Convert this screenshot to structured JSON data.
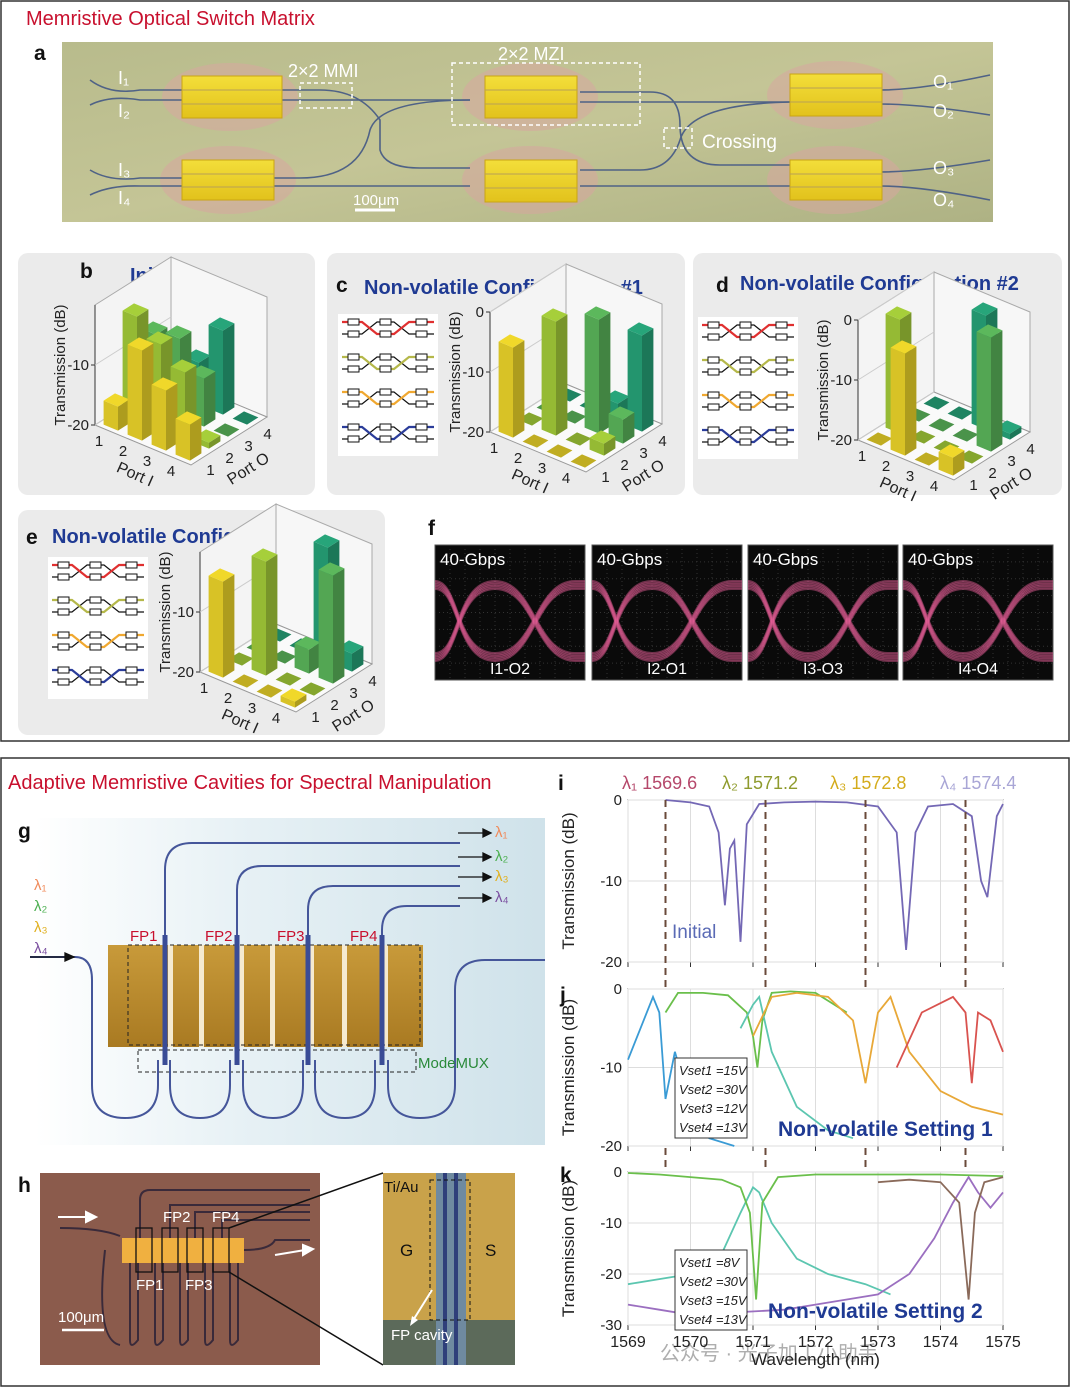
{
  "top_title": "Memristive Optical Switch Matrix",
  "panel_a": {
    "label": "a",
    "inputs": [
      "I₁",
      "I₂",
      "I₃",
      "I₄"
    ],
    "outputs": [
      "O₁",
      "O₂",
      "O₃",
      "O₄"
    ],
    "mmi": "2×2 MMI",
    "mzi": "2×2 MZI",
    "crossing": "Crossing",
    "scale_bar": "100μm"
  },
  "panel_f": {
    "label": "f",
    "eyes": [
      {
        "rate": "40-Gbps",
        "link": "I1-O2"
      },
      {
        "rate": "40-Gbps",
        "link": "I2-O1"
      },
      {
        "rate": "40-Gbps",
        "link": "I3-O3"
      },
      {
        "rate": "40-Gbps",
        "link": "I4-O4"
      }
    ]
  },
  "bottom_title": "Adaptive Memristive Cavities for Spectral Manipulation",
  "panel_g": {
    "label": "g",
    "inputs": [
      "λ₁",
      "λ₂",
      "λ₃",
      "λ₄"
    ],
    "outputs": [
      "λ₁",
      "λ₂",
      "λ₃",
      "λ₄"
    ],
    "cavities": [
      "FP1",
      "FP2",
      "FP3",
      "FP4"
    ],
    "mux": "ModeMUX"
  },
  "panel_h": {
    "label": "h",
    "cavities_top": [
      "FP2",
      "FP4"
    ],
    "cavities_bottom": [
      "FP1",
      "FP3"
    ],
    "scale_bar": "100μm",
    "electrode": "Ti/Au",
    "ground": "G",
    "signal": "S",
    "cavity": "FP cavity"
  },
  "watermark": "公众号 · 光子加工小助手",
  "chart_data": [
    {
      "type": "bar3d",
      "label": "b",
      "title": "Initial",
      "ylabel": "Transmission (dB)",
      "ylim": [
        -20,
        0
      ],
      "yticks": [
        -10,
        -20
      ],
      "x_label": "Port I",
      "x_categories": [
        "1",
        "2",
        "3",
        "4"
      ],
      "z_label": "Port O",
      "z_categories": [
        "1",
        "2",
        "3",
        "4"
      ],
      "colors": [
        "#f0d82a",
        "#a6cf3a",
        "#5cb85c",
        "#27a57a"
      ],
      "values": [
        [
          -16,
          -3,
          -8,
          -19
        ],
        [
          -5,
          -6,
          -7,
          -13
        ],
        [
          -10,
          -9,
          -12,
          -6
        ],
        [
          -14,
          -19,
          -20,
          -20
        ]
      ]
    },
    {
      "type": "bar3d",
      "label": "c",
      "title": "Non-volatile Configuration #1",
      "ylabel": "Transmission (dB)",
      "ylim": [
        -20,
        0
      ],
      "yticks": [
        0,
        -10,
        -20
      ],
      "x_label": "Port I",
      "x_categories": [
        "1",
        "2",
        "3",
        "4"
      ],
      "z_label": "Port O",
      "z_categories": [
        "1",
        "2",
        "3",
        "4"
      ],
      "colors": [
        "#f0d82a",
        "#a6cf3a",
        "#5cb85c",
        "#27a57a"
      ],
      "values": [
        [
          -5,
          -20,
          -20,
          -20
        ],
        [
          -20,
          -1,
          -20,
          -20
        ],
        [
          -20,
          -20,
          -1,
          -17
        ],
        [
          -20,
          -18,
          -16,
          -4
        ]
      ]
    },
    {
      "type": "bar3d",
      "label": "d",
      "title": "Non-volatile Configuration #2",
      "ylabel": "Transmission (dB)",
      "ylim": [
        -20,
        0
      ],
      "yticks": [
        0,
        -10,
        -20
      ],
      "x_label": "Port I",
      "x_categories": [
        "1",
        "2",
        "3",
        "4"
      ],
      "z_label": "Port O",
      "z_categories": [
        "1",
        "2",
        "3",
        "4"
      ],
      "colors": [
        "#f0d82a",
        "#a6cf3a",
        "#5cb85c",
        "#27a57a"
      ],
      "values": [
        [
          -20,
          -1,
          -20,
          -20
        ],
        [
          -3,
          -20,
          -20,
          -20
        ],
        [
          -20,
          -20,
          -20,
          -1
        ],
        [
          -17,
          -20,
          -1,
          -19
        ]
      ]
    },
    {
      "type": "bar3d",
      "label": "e",
      "title": "Non-volatile Configuration #3",
      "ylabel": "Transmission (dB)",
      "ylim": [
        -20,
        0
      ],
      "yticks": [
        -10,
        -20
      ],
      "x_label": "Port I",
      "x_categories": [
        "1",
        "2",
        "3",
        "4"
      ],
      "z_label": "Port O",
      "z_categories": [
        "1",
        "2",
        "3",
        "4"
      ],
      "colors": [
        "#f0d82a",
        "#a6cf3a",
        "#5cb85c",
        "#27a57a"
      ],
      "values": [
        [
          -4,
          -20,
          -20,
          -20
        ],
        [
          -20,
          -1,
          -20,
          -20
        ],
        [
          -20,
          -20,
          -16,
          -1
        ],
        [
          -19,
          -20,
          -2,
          -17
        ]
      ]
    },
    {
      "type": "line",
      "label": "i",
      "ylabel": "Transmission (dB)",
      "xlim": [
        1569,
        1575
      ],
      "xticks": [
        1569,
        1570,
        1571,
        1572,
        1573,
        1574,
        1575
      ],
      "xtick_labels": false,
      "ylim": [
        -20,
        0
      ],
      "yticks": [
        0,
        -10,
        -20
      ],
      "grid": true,
      "annotation": "Initial",
      "markers": [
        {
          "label": "λ₁",
          "value": 1569.6,
          "color": "#b5476a"
        },
        {
          "label": "λ₂",
          "value": 1571.2,
          "color": "#8f9b2e"
        },
        {
          "label": "λ₃",
          "value": 1572.8,
          "color": "#d4ac1c"
        },
        {
          "label": "λ₄",
          "value": 1574.4,
          "color": "#a9a6d6"
        }
      ],
      "series": [
        {
          "color": "#7468b5",
          "x": [
            1569.6,
            1570.0,
            1570.3,
            1570.45,
            1570.55,
            1570.63,
            1570.7,
            1570.8,
            1570.9,
            1571.1,
            1571.5,
            1572,
            1572.5,
            1573.0,
            1573.3,
            1573.45,
            1573.6,
            1573.8,
            1574.2,
            1574.5,
            1574.65,
            1574.75,
            1574.9,
            1575
          ],
          "values": [
            0,
            -0.3,
            -0.8,
            -4,
            -13,
            -6,
            -5,
            -17.5,
            -3,
            -0.5,
            -0.3,
            -0.2,
            -0.3,
            -0.8,
            -4,
            -18.5,
            -4,
            -0.8,
            -0.5,
            -2,
            -10,
            -12,
            -2,
            -0.5
          ]
        }
      ]
    },
    {
      "type": "line",
      "label": "j",
      "ylabel": "Transmission (dB)",
      "xlim": [
        1569,
        1575
      ],
      "xticks": [
        1569,
        1570,
        1571,
        1572,
        1573,
        1574,
        1575
      ],
      "xtick_labels": false,
      "ylim": [
        -20,
        0
      ],
      "yticks": [
        0,
        -10,
        -20
      ],
      "grid": true,
      "annotation": "Non-volatile Setting 1",
      "settings": [
        "Vset1 =15V",
        "Vset2 =30V",
        "Vset3 =12V",
        "Vset4 =13V"
      ],
      "series": [
        {
          "color": "#3a9bd5",
          "x": [
            1569,
            1569.2,
            1569.4,
            1569.5,
            1569.6,
            1569.75,
            1570,
            1570.3,
            1570.7
          ],
          "values": [
            -9,
            -5,
            -1,
            -3,
            -14,
            -8,
            -15,
            -19,
            -20
          ]
        },
        {
          "color": "#6abf4b",
          "x": [
            1569.6,
            1569.8,
            1570.2,
            1570.6,
            1570.9,
            1571.0,
            1571.07,
            1571.15,
            1571.3,
            1571.6,
            1572,
            1572.5
          ],
          "values": [
            -3,
            -0.5,
            -0.5,
            -0.8,
            -3,
            -6,
            -10,
            -4,
            -0.5,
            -0.3,
            -0.5,
            -3
          ]
        },
        {
          "color": "#5cc6b0",
          "x": [
            1570.8,
            1571.0,
            1571.1,
            1571.3,
            1571.7,
            1572.2,
            1572.6
          ],
          "values": [
            -5,
            -2,
            -1,
            -8,
            -15,
            -18,
            -19
          ]
        },
        {
          "color": "#e8a838",
          "x": [
            1571.0,
            1571.3,
            1571.7,
            1572.2,
            1572.6,
            1572.8,
            1573.0,
            1573.2,
            1573.5,
            1574,
            1574.5,
            1575
          ],
          "values": [
            -6,
            -1,
            -0.5,
            -1,
            -4,
            -12,
            -3,
            -1,
            -8,
            -13,
            -15,
            -16
          ]
        },
        {
          "color": "#d9534f",
          "x": [
            1573.3,
            1573.7,
            1574.2,
            1574.4,
            1574.5,
            1574.6,
            1574.8,
            1575
          ],
          "values": [
            -10,
            -3,
            -1,
            -3,
            -12,
            -3,
            -4,
            -8
          ]
        }
      ]
    },
    {
      "type": "line",
      "label": "k",
      "ylabel": "Transmission (dB)",
      "xlabel": "Wavelength (nm)",
      "xlim": [
        1569,
        1575
      ],
      "xticks": [
        1569,
        1570,
        1571,
        1572,
        1573,
        1574,
        1575
      ],
      "xtick_labels": true,
      "ylim": [
        -30,
        0
      ],
      "yticks": [
        0,
        -10,
        -20,
        -30
      ],
      "grid": true,
      "annotation": "Non-volatile Setting 2",
      "settings": [
        "Vset1 =8V",
        "Vset2 =30V",
        "Vset3 =15V",
        "Vset4 =13V"
      ],
      "series": [
        {
          "color": "#5cc6b0",
          "x": [
            1569,
            1569.5,
            1570,
            1570.5,
            1570.8,
            1571.0,
            1571.1,
            1571.3,
            1571.7,
            1572.2,
            1572.8,
            1573.2
          ],
          "values": [
            -22,
            -21,
            -20,
            -16,
            -8,
            -3,
            -4,
            -10,
            -17,
            -20,
            -22,
            -24
          ]
        },
        {
          "color": "#9b6fc0",
          "x": [
            1569,
            1569.5,
            1570,
            1571.5,
            1572,
            1572.5,
            1573,
            1573.5,
            1573.9,
            1574.2,
            1574.45,
            1574.6,
            1574.8,
            1575
          ],
          "values": [
            -26,
            -27,
            -28,
            -27,
            -26,
            -25,
            -24,
            -20,
            -13,
            -6,
            -1,
            -4,
            -7,
            -4
          ]
        },
        {
          "color": "#6abf4b",
          "x": [
            1569,
            1569.5,
            1570,
            1570.5,
            1570.8,
            1570.95,
            1571.05,
            1571.15,
            1571.4,
            1572,
            1573,
            1574,
            1575
          ],
          "values": [
            -0.2,
            -0.5,
            -1,
            -1.5,
            -3,
            -8,
            -25,
            -6,
            -1,
            -0.5,
            -0.5,
            -0.5,
            -0.8
          ]
        },
        {
          "color": "#8a6a5a",
          "x": [
            1573,
            1573.5,
            1574,
            1574.3,
            1574.45,
            1574.55,
            1574.7,
            1575
          ],
          "values": [
            -2,
            -1.5,
            -2,
            -6,
            -25,
            -8,
            -2,
            -1
          ]
        }
      ]
    }
  ]
}
